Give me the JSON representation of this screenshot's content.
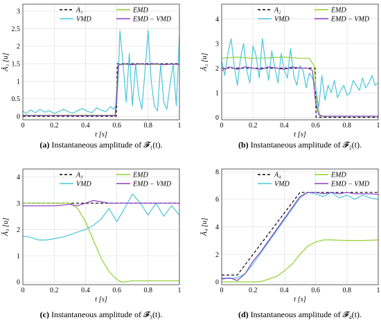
{
  "chart_data": [
    {
      "type": "line",
      "ylabel": "Â₁ [u]",
      "xlabel": "t [s]",
      "caption_prefix": "(a)",
      "caption_text": "Instantaneous amplitude of 𝓕̂₁(t).",
      "xlim": [
        0,
        1
      ],
      "ylim": [
        -0.1,
        3.2
      ],
      "xticks": [
        "0",
        "0.2",
        "0.4",
        "0.6",
        "0.8",
        "1"
      ],
      "yticks": [
        "0",
        "0.5",
        "1",
        "1.5",
        "2",
        "2.5",
        "3"
      ],
      "ytick_values": [
        0,
        0.5,
        1,
        1.5,
        2,
        2.5,
        3
      ],
      "legend": [
        "A₁",
        "EMD",
        "VMD",
        "EMD − VMD"
      ],
      "grid": true,
      "series": [
        {
          "name": "A₁",
          "color": "#000000",
          "dash": "4,3",
          "x": [
            0,
            0.597,
            0.603,
            1
          ],
          "y": [
            0,
            0,
            1.5,
            1.5
          ]
        },
        {
          "name": "EMD",
          "color": "#8ed12d",
          "x": [
            0,
            0.59,
            0.6,
            0.61,
            1
          ],
          "y": [
            0.03,
            0.03,
            0.8,
            1.48,
            1.48
          ]
        },
        {
          "name": "VMD",
          "color": "#47c6da",
          "x": [
            0,
            0.02,
            0.05,
            0.08,
            0.11,
            0.14,
            0.17,
            0.2,
            0.23,
            0.26,
            0.29,
            0.32,
            0.35,
            0.38,
            0.41,
            0.44,
            0.47,
            0.5,
            0.53,
            0.56,
            0.58,
            0.6,
            0.61,
            0.62,
            0.64,
            0.66,
            0.68,
            0.7,
            0.72,
            0.74,
            0.76,
            0.78,
            0.8,
            0.82,
            0.84,
            0.86,
            0.88,
            0.9,
            0.92,
            0.94,
            0.96,
            0.98,
            1.0
          ],
          "y": [
            0.15,
            0.08,
            0.18,
            0.1,
            0.2,
            0.12,
            0.16,
            0.08,
            0.14,
            0.2,
            0.13,
            0.09,
            0.16,
            0.22,
            0.15,
            0.1,
            0.24,
            0.18,
            0.13,
            0.28,
            0.2,
            0.35,
            1.2,
            2.45,
            1.5,
            0.4,
            1.8,
            0.3,
            1.5,
            0.6,
            0.2,
            1.3,
            2.45,
            1.0,
            0.3,
            0.15,
            1.5,
            0.4,
            0.2,
            0.9,
            1.5,
            0.3,
            2.3
          ]
        },
        {
          "name": "EMD − VMD",
          "color": "#8b3dc6",
          "x": [
            0,
            0.59,
            0.6,
            0.61,
            0.65,
            0.7,
            0.75,
            0.8,
            0.85,
            0.9,
            0.95,
            1
          ],
          "y": [
            0.02,
            0.02,
            0.7,
            1.46,
            1.5,
            1.47,
            1.5,
            1.48,
            1.5,
            1.47,
            1.49,
            1.48
          ]
        }
      ]
    },
    {
      "type": "line",
      "ylabel": "Â₂ [u]",
      "xlabel": "t [s]",
      "caption_prefix": "(b)",
      "caption_text": "Instantaneous amplitude of 𝓕̂₂(t).",
      "xlim": [
        0,
        1
      ],
      "ylim": [
        -0.1,
        4.6
      ],
      "xticks": [
        "0",
        "0.2",
        "0.4",
        "0.6",
        "0.8",
        "1"
      ],
      "yticks": [
        "0",
        "1",
        "2",
        "3",
        "4"
      ],
      "ytick_values": [
        0,
        1,
        2,
        3,
        4
      ],
      "legend": [
        "A₂",
        "EMD",
        "VMD",
        "EMD − VMD"
      ],
      "grid": true,
      "series": [
        {
          "name": "A₂",
          "color": "#000000",
          "dash": "4,3",
          "x": [
            0,
            0.597,
            0.603,
            1
          ],
          "y": [
            2,
            2,
            0,
            0
          ]
        },
        {
          "name": "EMD",
          "color": "#8ed12d",
          "x": [
            0,
            0.1,
            0.2,
            0.3,
            0.4,
            0.5,
            0.56,
            0.59,
            0.61,
            0.63,
            0.7,
            1
          ],
          "y": [
            2.4,
            2.45,
            2.4,
            2.42,
            2.45,
            2.4,
            2.4,
            2.1,
            0.5,
            0.05,
            0.05,
            0.05
          ]
        },
        {
          "name": "VMD",
          "color": "#47c6da",
          "x": [
            0,
            0.02,
            0.04,
            0.06,
            0.08,
            0.1,
            0.12,
            0.14,
            0.16,
            0.18,
            0.2,
            0.22,
            0.24,
            0.26,
            0.28,
            0.3,
            0.32,
            0.34,
            0.36,
            0.38,
            0.4,
            0.42,
            0.44,
            0.46,
            0.48,
            0.5,
            0.52,
            0.54,
            0.56,
            0.58,
            0.6,
            0.62,
            0.64,
            0.66,
            0.68,
            0.7,
            0.72,
            0.74,
            0.76,
            0.78,
            0.8,
            0.82,
            0.84,
            0.86,
            0.88,
            0.9,
            0.92,
            0.94,
            0.96,
            0.98,
            1.0
          ],
          "y": [
            2.3,
            1.7,
            2.6,
            3.2,
            2.1,
            1.3,
            2.4,
            3.0,
            1.9,
            1.4,
            2.9,
            2.5,
            1.6,
            3.2,
            2.2,
            1.5,
            2.7,
            2.0,
            1.4,
            2.6,
            1.9,
            1.6,
            2.8,
            1.7,
            1.3,
            2.1,
            1.9,
            1.2,
            1.8,
            1.6,
            1.2,
            0.4,
            1.7,
            0.7,
            1.3,
            1.0,
            1.5,
            0.8,
            1.1,
            1.3,
            0.9,
            1.0,
            1.5,
            1.3,
            1.1,
            1.6,
            1.2,
            1.4,
            1.7,
            1.3,
            1.4
          ]
        },
        {
          "name": "EMD − VMD",
          "color": "#8b3dc6",
          "x": [
            0,
            0.05,
            0.1,
            0.15,
            0.2,
            0.25,
            0.3,
            0.35,
            0.4,
            0.45,
            0.5,
            0.55,
            0.58,
            0.6,
            0.62,
            0.65,
            0.7,
            0.8,
            0.9,
            1
          ],
          "y": [
            1.9,
            2.05,
            1.95,
            2.05,
            2.0,
            1.95,
            2.05,
            2.0,
            1.95,
            2.05,
            2.0,
            2.0,
            1.9,
            0.6,
            0.1,
            0.05,
            0.05,
            0.05,
            0.05,
            0.05
          ]
        }
      ]
    },
    {
      "type": "line",
      "ylabel": "Â₃ [u]",
      "xlabel": "t [s]",
      "caption_prefix": "(c)",
      "caption_text": "Instantaneous amplitude of 𝓕̂₃(t).",
      "xlim": [
        0,
        1
      ],
      "ylim": [
        -0.1,
        4.3
      ],
      "xticks": [
        "0",
        "0.2",
        "0.4",
        "0.6",
        "0.8",
        "1"
      ],
      "yticks": [
        "0",
        "1",
        "2",
        "3",
        "4"
      ],
      "ytick_values": [
        0,
        1,
        2,
        3,
        4
      ],
      "legend": [
        "A₃",
        "EMD",
        "VMD",
        "EMD − VMD"
      ],
      "grid": true,
      "series": [
        {
          "name": "A₃",
          "color": "#000000",
          "dash": "4,3",
          "x": [
            0,
            1
          ],
          "y": [
            3,
            3
          ]
        },
        {
          "name": "EMD",
          "color": "#8ed12d",
          "x": [
            0,
            0.1,
            0.2,
            0.3,
            0.35,
            0.4,
            0.45,
            0.5,
            0.55,
            0.6,
            0.63,
            0.65,
            0.7,
            0.8,
            0.9,
            1
          ],
          "y": [
            3.0,
            3.0,
            3.0,
            3.0,
            2.8,
            2.3,
            1.6,
            0.9,
            0.4,
            0.1,
            0.0,
            0.0,
            0.05,
            0.05,
            0.05,
            0.05
          ]
        },
        {
          "name": "VMD",
          "color": "#47c6da",
          "x": [
            0,
            0.05,
            0.1,
            0.15,
            0.2,
            0.25,
            0.3,
            0.35,
            0.4,
            0.45,
            0.5,
            0.55,
            0.6,
            0.65,
            0.7,
            0.75,
            0.8,
            0.85,
            0.9,
            0.95,
            1
          ],
          "y": [
            1.75,
            1.7,
            1.6,
            1.6,
            1.65,
            1.7,
            1.8,
            1.9,
            2.0,
            2.15,
            2.4,
            2.8,
            2.3,
            2.8,
            3.35,
            3.0,
            2.55,
            3.0,
            2.5,
            2.9,
            2.55
          ]
        },
        {
          "name": "EMD − VMD",
          "color": "#8b3dc6",
          "x": [
            0,
            0.1,
            0.2,
            0.3,
            0.35,
            0.4,
            0.45,
            0.5,
            0.55,
            0.6,
            0.7,
            0.8,
            0.9,
            1
          ],
          "y": [
            2.9,
            2.9,
            2.9,
            2.95,
            2.9,
            3.0,
            3.1,
            3.05,
            3.0,
            3.0,
            3.0,
            3.0,
            3.0,
            3.0
          ]
        }
      ]
    },
    {
      "type": "line",
      "ylabel": "Â₄ [u]",
      "xlabel": "t [s]",
      "caption_prefix": "(d)",
      "caption_text": "Instantaneous amplitude of 𝓕̂₄(t).",
      "xlim": [
        0,
        1
      ],
      "ylim": [
        -0.2,
        8.2
      ],
      "xticks": [
        "0",
        "0.2",
        "0.4",
        "0.6",
        "0.8",
        "1"
      ],
      "yticks": [
        "0",
        "2",
        "4",
        "6",
        "8"
      ],
      "ytick_values": [
        0,
        2,
        4,
        6,
        8
      ],
      "legend": [
        "A₄",
        "EMD",
        "VMD",
        "EMD − VMD"
      ],
      "grid": true,
      "series": [
        {
          "name": "A₄",
          "color": "#000000",
          "dash": "4,3",
          "x": [
            0,
            0.1,
            0.5,
            1
          ],
          "y": [
            0.5,
            0.5,
            6.5,
            6.5
          ]
        },
        {
          "name": "EMD",
          "color": "#8ed12d",
          "x": [
            0,
            0.2,
            0.25,
            0.3,
            0.35,
            0.4,
            0.45,
            0.5,
            0.55,
            0.6,
            0.65,
            0.7,
            0.8,
            0.9,
            1
          ],
          "y": [
            0,
            0,
            0.02,
            0.2,
            0.4,
            0.8,
            1.3,
            2.0,
            2.6,
            2.9,
            3.05,
            3.05,
            3.0,
            3.0,
            3.05
          ]
        },
        {
          "name": "VMD",
          "color": "#47c6da",
          "x": [
            0,
            0.05,
            0.1,
            0.15,
            0.2,
            0.25,
            0.3,
            0.35,
            0.4,
            0.45,
            0.5,
            0.55,
            0.6,
            0.65,
            0.7,
            0.75,
            0.8,
            0.85,
            0.9,
            0.95,
            1
          ],
          "y": [
            0.3,
            0.25,
            0.3,
            0.6,
            1.3,
            2.1,
            2.9,
            3.7,
            4.5,
            5.3,
            6.1,
            6.5,
            6.4,
            6.2,
            6.5,
            6.1,
            6.3,
            6.0,
            6.3,
            6.1,
            6.0
          ]
        },
        {
          "name": "EMD − VMD",
          "color": "#8b3dc6",
          "x": [
            0,
            0.05,
            0.1,
            0.15,
            0.2,
            0.25,
            0.3,
            0.35,
            0.4,
            0.45,
            0.5,
            0.55,
            0.6,
            0.65,
            0.7,
            0.75,
            0.8,
            0.85,
            0.9,
            0.95,
            1
          ],
          "y": [
            0.2,
            0.3,
            0.1,
            0.6,
            1.5,
            2.2,
            3.0,
            3.8,
            4.6,
            5.4,
            6.2,
            6.5,
            6.5,
            6.4,
            6.5,
            6.4,
            6.5,
            6.4,
            6.4,
            6.4,
            6.35
          ]
        }
      ]
    }
  ]
}
